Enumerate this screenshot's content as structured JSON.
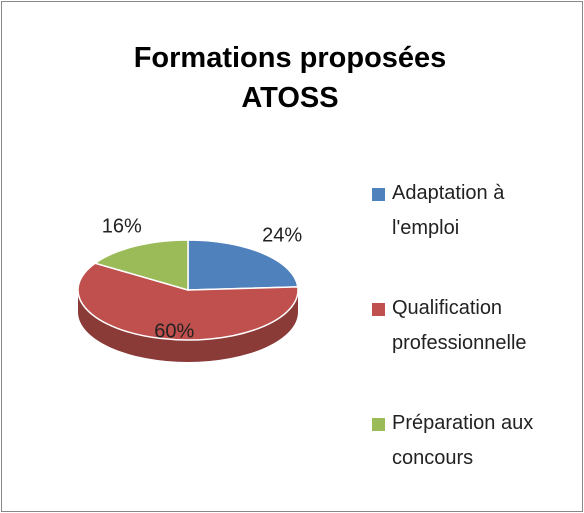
{
  "chart_data": {
    "type": "pie3d",
    "title": "Formations proposées ATOSS",
    "categories": [
      "Adaptation à l'emploi",
      "Qualification professionnelle",
      "Préparation aux concours"
    ],
    "values": [
      24,
      60,
      16
    ],
    "value_labels": [
      "24%",
      "60%",
      "16%"
    ],
    "colors": [
      "#4f81bd",
      "#c0504d",
      "#9bbb59"
    ],
    "legend": "right"
  }
}
